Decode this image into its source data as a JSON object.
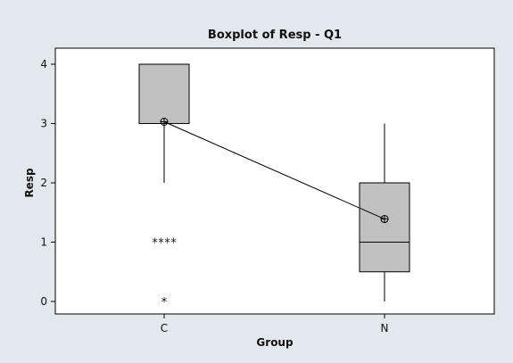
{
  "colors": {
    "frame_background": "#e3e7ee",
    "plot_background": "#ffffff",
    "box_fill": "#c0c0c0",
    "line": "#000000"
  },
  "chart_data": {
    "type": "boxplot",
    "title": "Boxplot of Resp - Q1",
    "xlabel": "Group",
    "ylabel": "Resp",
    "categories": [
      "C",
      "N"
    ],
    "ylim": [
      -0.2,
      4.2
    ],
    "yticks": [
      0,
      1,
      2,
      3,
      4
    ],
    "grid": false,
    "legend": "none",
    "boxes": [
      {
        "category": "C",
        "whisker_low": 2,
        "q1": 3,
        "median": 3,
        "q3": 4,
        "whisker_high": 4,
        "mean": 3.03,
        "outliers": [
          1,
          1,
          1,
          1,
          0
        ]
      },
      {
        "category": "N",
        "whisker_low": 0,
        "q1": 0.5,
        "median": 1,
        "q3": 2,
        "whisker_high": 3,
        "mean": 1.39,
        "outliers": []
      }
    ],
    "mean_connect_line": true
  }
}
